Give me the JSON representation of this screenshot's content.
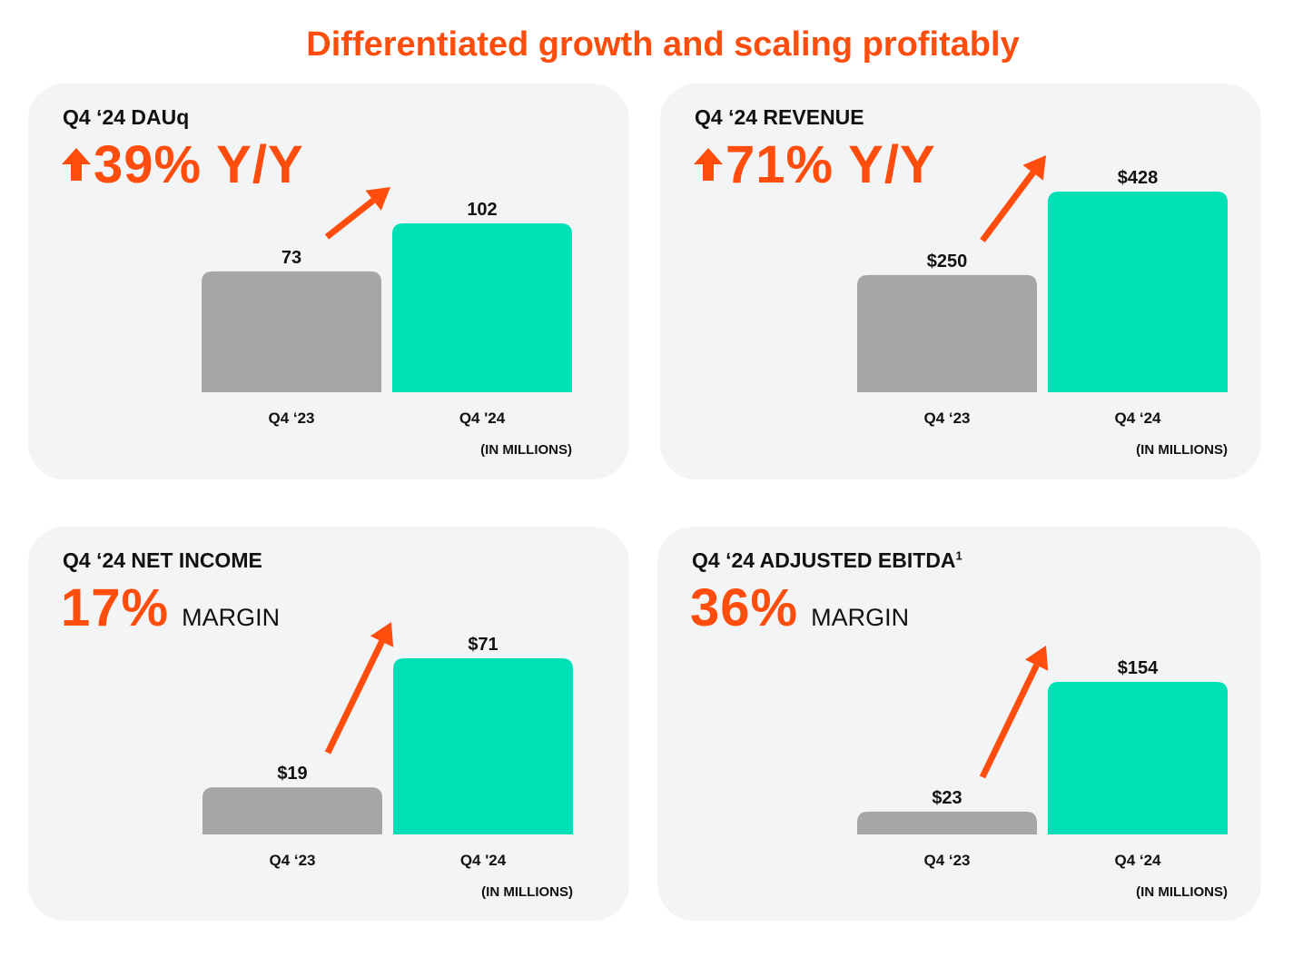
{
  "title": "Differentiated growth and scaling profitably",
  "colors": {
    "accent": "#ff4d0d",
    "bar_prev": "#a6a6a6",
    "bar_curr": "#00e0b6",
    "card_bg": "#f2f4f5",
    "text": "#111111"
  },
  "cards": [
    {
      "label": "Q4 ‘24 DAUq",
      "label_sup": "",
      "headline": "39% Y/Y",
      "headline_suffix": "",
      "show_up_icon": true,
      "unit_note": "(IN MILLIONS)"
    },
    {
      "label": "Q4 ‘24 REVENUE",
      "label_sup": "",
      "headline": "71% Y/Y",
      "headline_suffix": "",
      "show_up_icon": true,
      "unit_note": "(IN MILLIONS)"
    },
    {
      "label": "Q4 ‘24 NET INCOME",
      "label_sup": "",
      "headline": "17%",
      "headline_suffix": "MARGIN",
      "show_up_icon": false,
      "unit_note": "(IN MILLIONS)"
    },
    {
      "label": "Q4 ‘24 ADJUSTED EBITDA",
      "label_sup": "1",
      "headline": "36%",
      "headline_suffix": "MARGIN",
      "show_up_icon": false,
      "unit_note": "(IN MILLIONS)"
    }
  ],
  "chart_data": [
    {
      "type": "bar",
      "title": "Q4 ‘24 DAUq",
      "categories": [
        "Q4 ‘23",
        "Q4 '24"
      ],
      "values": [
        73,
        102
      ],
      "value_labels": [
        "73",
        "102"
      ],
      "ylim": [
        0,
        102
      ],
      "ylabel": "(IN MILLIONS)"
    },
    {
      "type": "bar",
      "title": "Q4 ‘24 REVENUE",
      "categories": [
        "Q4 ‘23",
        "Q4 ‘24"
      ],
      "values": [
        250,
        428
      ],
      "value_labels": [
        "$250",
        "$428"
      ],
      "ylim": [
        0,
        428
      ],
      "ylabel": "(IN MILLIONS)"
    },
    {
      "type": "bar",
      "title": "Q4 ‘24 NET INCOME",
      "categories": [
        "Q4 ‘23",
        "Q4 '24"
      ],
      "values": [
        19,
        71
      ],
      "value_labels": [
        "$19",
        "$71"
      ],
      "ylim": [
        0,
        71
      ],
      "ylabel": "(IN MILLIONS)"
    },
    {
      "type": "bar",
      "title": "Q4 ‘24 ADJUSTED EBITDA",
      "categories": [
        "Q4 ‘23",
        "Q4 ‘24"
      ],
      "values": [
        23,
        154
      ],
      "value_labels": [
        "$23",
        "$154"
      ],
      "ylim": [
        0,
        154
      ],
      "ylabel": "(IN MILLIONS)"
    }
  ]
}
